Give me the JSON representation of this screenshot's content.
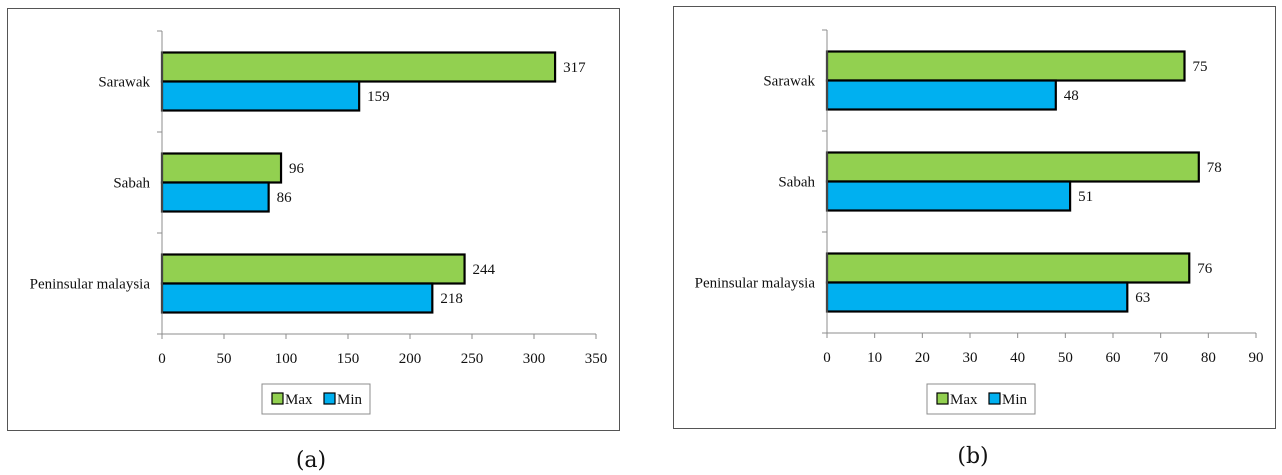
{
  "chart_data": [
    {
      "type": "bar",
      "orientation": "horizontal",
      "caption": "(a)",
      "categories": [
        "Sarawak",
        "Sabah",
        "Peninsular malaysia"
      ],
      "series": [
        {
          "name": "Max",
          "values": [
            317,
            96,
            244
          ],
          "color": "#92d050"
        },
        {
          "name": "Min",
          "values": [
            159,
            86,
            218
          ],
          "color": "#00b0f0"
        }
      ],
      "data_labels": [
        [
          "317",
          "96",
          "244"
        ],
        [
          "159",
          "86",
          "218"
        ]
      ],
      "xlim": [
        0,
        350
      ],
      "xticks": [
        "0",
        "50",
        "100",
        "150",
        "200",
        "250",
        "300",
        "350"
      ],
      "grid": false,
      "legend_position": "bottom",
      "legend": [
        "Max",
        "Min"
      ]
    },
    {
      "type": "bar",
      "orientation": "horizontal",
      "caption": "(b)",
      "categories": [
        "Sarawak",
        "Sabah",
        "Peninsular malaysia"
      ],
      "series": [
        {
          "name": "Max",
          "values": [
            75,
            78,
            76
          ],
          "color": "#92d050"
        },
        {
          "name": "Min",
          "values": [
            48,
            51,
            63
          ],
          "color": "#00b0f0"
        }
      ],
      "data_labels": [
        [
          "75",
          "78",
          "76"
        ],
        [
          "48",
          "51",
          "63"
        ]
      ],
      "xlim": [
        0,
        90
      ],
      "xticks": [
        "0",
        "10",
        "20",
        "30",
        "40",
        "50",
        "60",
        "70",
        "80",
        "90"
      ],
      "grid": false,
      "legend_position": "bottom",
      "legend": [
        "Max",
        "Min"
      ]
    }
  ]
}
